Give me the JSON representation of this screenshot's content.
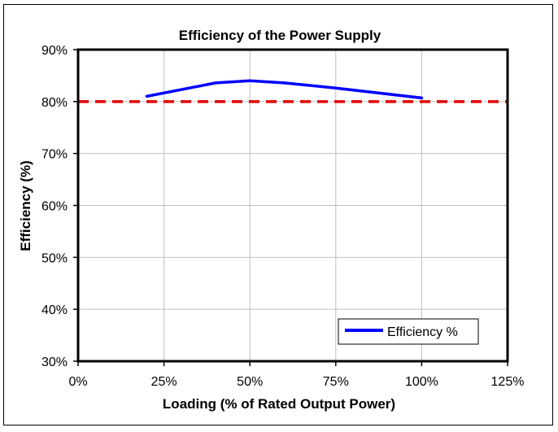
{
  "chart_data": {
    "type": "line",
    "title": "Efficiency of the Power Supply",
    "xlabel": "Loading (% of Rated Output Power)",
    "ylabel": "Efficiency (%)",
    "xlim": [
      0,
      125
    ],
    "ylim": [
      30,
      90
    ],
    "x_ticks": [
      0,
      25,
      50,
      75,
      100,
      125
    ],
    "y_ticks": [
      30,
      40,
      50,
      60,
      70,
      80,
      90
    ],
    "x_tick_labels": [
      "0%",
      "25%",
      "50%",
      "75%",
      "100%",
      "125%"
    ],
    "y_tick_labels": [
      "30%",
      "40%",
      "50%",
      "60%",
      "70%",
      "80%",
      "90%"
    ],
    "grid": true,
    "legend_position": "bottom-right",
    "series": [
      {
        "name": "Efficiency %",
        "color": "#0000ff",
        "style": "solid",
        "x": [
          20,
          40,
          50,
          60,
          75,
          100
        ],
        "y": [
          81,
          83.6,
          84,
          83.6,
          82.6,
          80.7
        ]
      }
    ],
    "reference_lines": [
      {
        "orientation": "horizontal",
        "y": 80,
        "color": "#e00000",
        "style": "dashed"
      }
    ]
  }
}
